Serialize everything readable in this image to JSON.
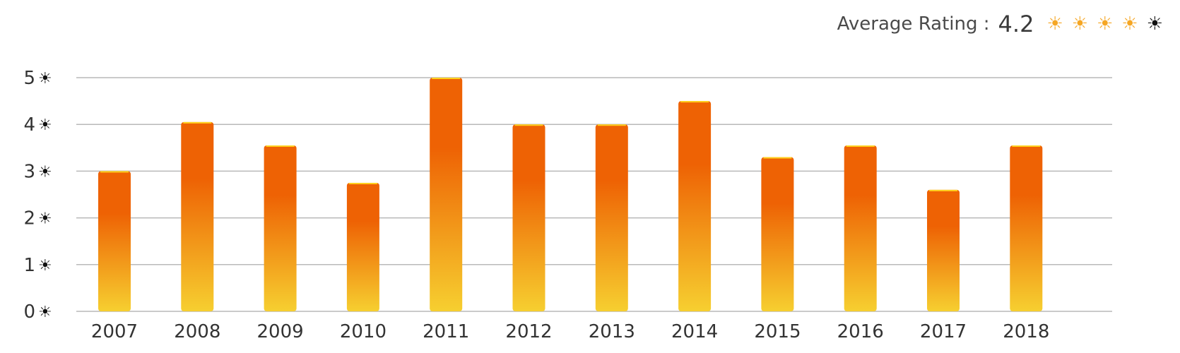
{
  "header": {
    "label": "Average Rating :",
    "value": "4.2",
    "stars_filled": 4,
    "stars_total": 5,
    "star_glyph": "☀",
    "star_filled_color": "#f5a623",
    "star_empty_color": "#111111"
  },
  "chart_data": {
    "type": "bar",
    "categories": [
      "2007",
      "2008",
      "2009",
      "2010",
      "2011",
      "2012",
      "2013",
      "2014",
      "2015",
      "2016",
      "2017",
      "2018"
    ],
    "values": [
      3.0,
      4.05,
      3.55,
      2.75,
      5.0,
      4.0,
      4.0,
      4.5,
      3.3,
      3.55,
      2.6,
      3.55
    ],
    "title": "",
    "xlabel": "",
    "ylabel": "",
    "ylim": [
      0,
      5
    ],
    "yticks": [
      "0",
      "1",
      "2",
      "3",
      "4",
      "5"
    ],
    "ytick_icon": "☀",
    "grid": true,
    "colors": {
      "bar_top": "#ee6204",
      "bar_bottom": "#f6cf30",
      "bar_cap": "#ffd21f",
      "grid": "#b9b9b9",
      "tick_text": "#333333",
      "ytick_icon": "#111111"
    }
  }
}
